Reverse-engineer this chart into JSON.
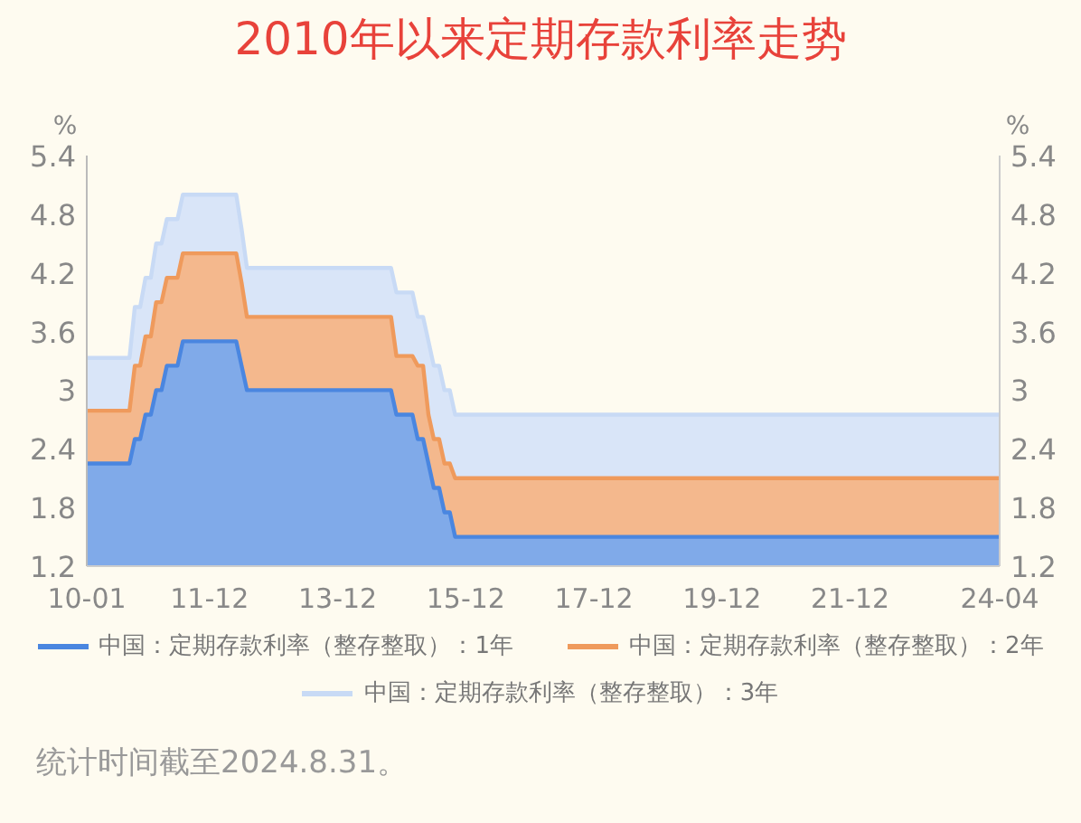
{
  "chart_data": {
    "type": "area",
    "title": "2010年以来定期存款利率走势",
    "x": [
      "2010-01",
      "2010-09",
      "2010-10",
      "2010-11",
      "2010-12",
      "2011-01",
      "2011-02",
      "2011-03",
      "2011-04",
      "2011-06",
      "2011-07",
      "2012-05",
      "2012-06",
      "2012-07",
      "2014-10",
      "2014-11",
      "2015-02",
      "2015-03",
      "2015-04",
      "2015-05",
      "2015-06",
      "2015-07",
      "2015-08",
      "2015-09",
      "2015-10",
      "2024-04"
    ],
    "series": [
      {
        "name": "中国：定期存款利率（整存整取）：1年",
        "color": "#4a86e0",
        "values": [
          2.25,
          2.25,
          2.5,
          2.5,
          2.75,
          2.75,
          3,
          3,
          3.25,
          3.25,
          3.5,
          3.5,
          3.25,
          3,
          3,
          2.75,
          2.75,
          2.5,
          2.5,
          2.25,
          2,
          2,
          1.75,
          1.75,
          1.5,
          1.5
        ]
      },
      {
        "name": "中国：定期存款利率（整存整取）：2年",
        "color": "#ef9a5c",
        "values": [
          2.79,
          2.79,
          3.25,
          3.25,
          3.55,
          3.55,
          3.9,
          3.9,
          4.15,
          4.15,
          4.4,
          4.4,
          4.1,
          3.75,
          3.75,
          3.35,
          3.35,
          3.25,
          3.25,
          2.75,
          2.5,
          2.5,
          2.25,
          2.25,
          2.1,
          2.1
        ]
      },
      {
        "name": "中国：定期存款利率（整存整取）：3年",
        "color": "#c8daf5",
        "values": [
          3.33,
          3.33,
          3.85,
          3.85,
          4.15,
          4.15,
          4.5,
          4.5,
          4.75,
          4.75,
          5,
          5,
          4.65,
          4.25,
          4.25,
          4,
          4,
          3.75,
          3.75,
          3.5,
          3.25,
          3.25,
          3,
          3,
          2.75,
          2.75
        ]
      }
    ],
    "ylabel": "%",
    "y2label": "%",
    "xlim": [
      "2010-01",
      "2024-04"
    ],
    "xticks": [
      {
        "value": "2010-01",
        "label": "10-01"
      },
      {
        "value": "2011-12",
        "label": "11-12"
      },
      {
        "value": "2013-12",
        "label": "13-12"
      },
      {
        "value": "2015-12",
        "label": "15-12"
      },
      {
        "value": "2017-12",
        "label": "17-12"
      },
      {
        "value": "2019-12",
        "label": "19-12"
      },
      {
        "value": "2021-12",
        "label": "21-12"
      },
      {
        "value": "2024-04",
        "label": "24-04"
      }
    ],
    "ylim": [
      1.2,
      5.4
    ],
    "yticks": [
      1.2,
      1.8,
      2.4,
      3,
      3.6,
      4.2,
      4.8,
      5.4
    ],
    "y2lim": [
      1.2,
      5.4
    ],
    "y2ticks": [
      1.2,
      1.8,
      2.4,
      3,
      3.6,
      4.2,
      4.8,
      5.4
    ],
    "legend": "bottom",
    "annotations": [
      "统计时间截至2024.8.31。"
    ]
  }
}
